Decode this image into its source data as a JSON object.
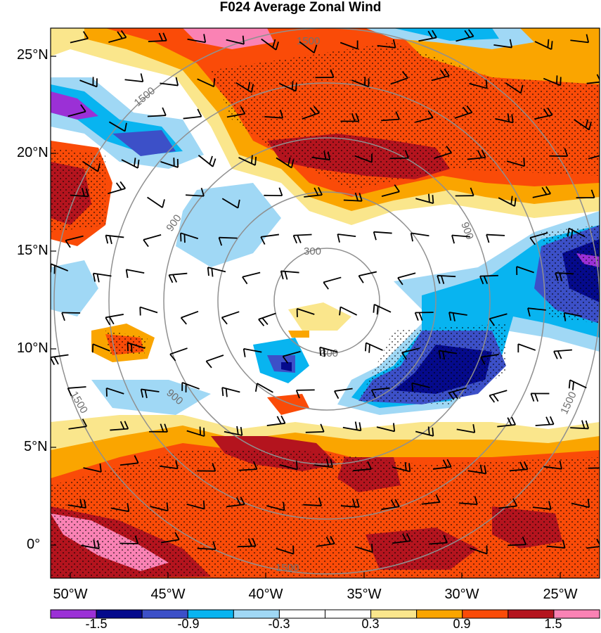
{
  "title": "F024 Average Zonal Wind",
  "colors": {
    "palette": [
      "#9b30d6",
      "#050a8c",
      "#3c50c8",
      "#08b4f0",
      "#a0d8f5",
      "#ffffff",
      "#ffffff",
      "#fae68c",
      "#faa500",
      "#fa4b08",
      "#b4141e",
      "#fa82b4"
    ],
    "range_ring": "#909090"
  },
  "chart_data": {
    "type": "heatmap",
    "title": "F024 Average Zonal Wind",
    "lat_labels": [
      "25°N",
      "20°N",
      "15°N",
      "10°N",
      "5°N",
      "0°"
    ],
    "lon_labels": [
      "50°W",
      "45°W",
      "40°W",
      "35°W",
      "30°W",
      "25°W"
    ],
    "lon_range": [
      -51,
      -23
    ],
    "lat_range": [
      -1.5,
      26.5
    ],
    "colorbar": {
      "labels": [
        "-1.5",
        "-0.9",
        "-0.3",
        "0.3",
        "0.9",
        "1.5"
      ],
      "levels": [
        -1.8,
        -1.5,
        -1.2,
        -0.9,
        -0.6,
        -0.3,
        0,
        0.3,
        0.6,
        0.9,
        1.2,
        1.5,
        1.8
      ]
    },
    "range_rings": {
      "center": {
        "lon": -36.5,
        "lat": 12.8
      },
      "labels": [
        "300",
        "900",
        "1500"
      ]
    },
    "overlays": [
      "wind barbs",
      "stippling"
    ]
  }
}
